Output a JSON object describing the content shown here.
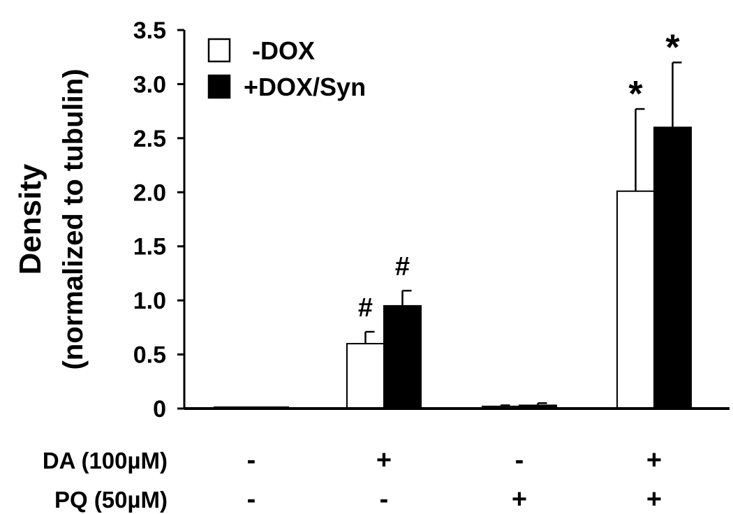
{
  "chart_data": {
    "type": "bar",
    "title": "",
    "xlabel": "",
    "ylabel_line1": "Density",
    "ylabel_line2": "(normalized to tubulin)",
    "ylim": [
      0,
      3.5
    ],
    "yticks": [
      {
        "value": 0,
        "label": "0"
      },
      {
        "value": 0.5,
        "label": "0.5"
      },
      {
        "value": 1.0,
        "label": "1.0"
      },
      {
        "value": 1.5,
        "label": "1.5"
      },
      {
        "value": 2.0,
        "label": "2.0"
      },
      {
        "value": 2.5,
        "label": "2.5"
      },
      {
        "value": 3.0,
        "label": "3.0"
      },
      {
        "value": 3.5,
        "label": "3.5"
      }
    ],
    "legend_position": "top-left",
    "series": [
      {
        "name": "-DOX",
        "fill": "#ffffff",
        "values": [
          0.01,
          0.6,
          0.02,
          2.01
        ],
        "errors": [
          0.0,
          0.11,
          0.01,
          0.76
        ],
        "markers": [
          "",
          "#",
          "",
          "*"
        ]
      },
      {
        "name": "+DOX/Syn",
        "fill": "#000000",
        "values": [
          0.01,
          0.95,
          0.03,
          2.6
        ],
        "errors": [
          0.0,
          0.14,
          0.02,
          0.6
        ],
        "markers": [
          "",
          "#",
          "",
          "*"
        ]
      }
    ],
    "conditions": [
      {
        "label": "DA (100µM)",
        "values": [
          "-",
          "+",
          "-",
          "+"
        ]
      },
      {
        "label": "PQ (50µM)",
        "values": [
          "-",
          "-",
          "+",
          "+"
        ]
      }
    ]
  }
}
